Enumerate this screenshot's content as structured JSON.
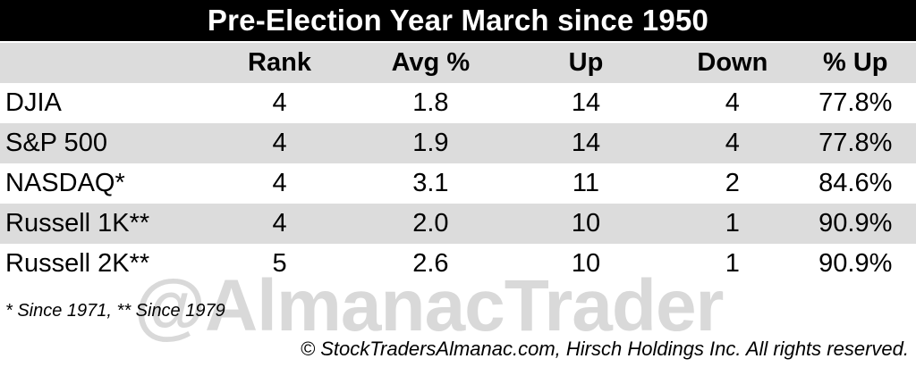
{
  "title": "Pre-Election Year March since 1950",
  "chart_data": {
    "type": "table",
    "columns": [
      "",
      "Rank",
      "Avg %",
      "Up",
      "Down",
      "% Up"
    ],
    "rows": [
      {
        "name": "DJIA",
        "rank": "4",
        "avg": "1.8",
        "up": "14",
        "down": "4",
        "pct_up": "77.8%"
      },
      {
        "name": "S&P 500",
        "rank": "4",
        "avg": "1.9",
        "up": "14",
        "down": "4",
        "pct_up": "77.8%"
      },
      {
        "name": "NASDAQ*",
        "rank": "4",
        "avg": "3.1",
        "up": "11",
        "down": "2",
        "pct_up": "84.6%"
      },
      {
        "name": "Russell 1K**",
        "rank": "4",
        "avg": "2.0",
        "up": "10",
        "down": "1",
        "pct_up": "90.9%"
      },
      {
        "name": "Russell 2K**",
        "rank": "5",
        "avg": "2.6",
        "up": "10",
        "down": "1",
        "pct_up": "90.9%"
      }
    ]
  },
  "footnote": "* Since 1971, ** Since 1979",
  "watermark": "@AlmanacTrader",
  "copyright": "© StockTradersAlmanac.com, Hirsch Holdings Inc. All rights reserved.",
  "colors": {
    "header_bg": "#000000",
    "row_shade": "#dcdcdc",
    "watermark": "#d9d9d9"
  }
}
